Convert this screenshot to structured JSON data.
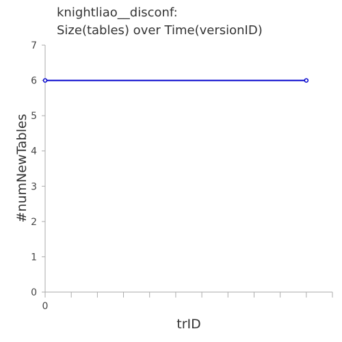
{
  "chart_data": {
    "type": "line",
    "title_lines": [
      "knightliao__disconf:",
      "Size(tables) over Time(versionID)"
    ],
    "xlabel": "trID",
    "ylabel": "#numNewTables",
    "ylim": [
      0,
      7
    ],
    "yticks": [
      0,
      1,
      2,
      3,
      4,
      5,
      6,
      7
    ],
    "xtick_labels": [
      "0"
    ],
    "grid": false,
    "series": [
      {
        "color": "#0000cc",
        "points": [
          {
            "x": 0,
            "y": 6
          },
          {
            "x": 10,
            "y": 6
          }
        ]
      }
    ],
    "xlim": [
      0,
      11
    ]
  }
}
